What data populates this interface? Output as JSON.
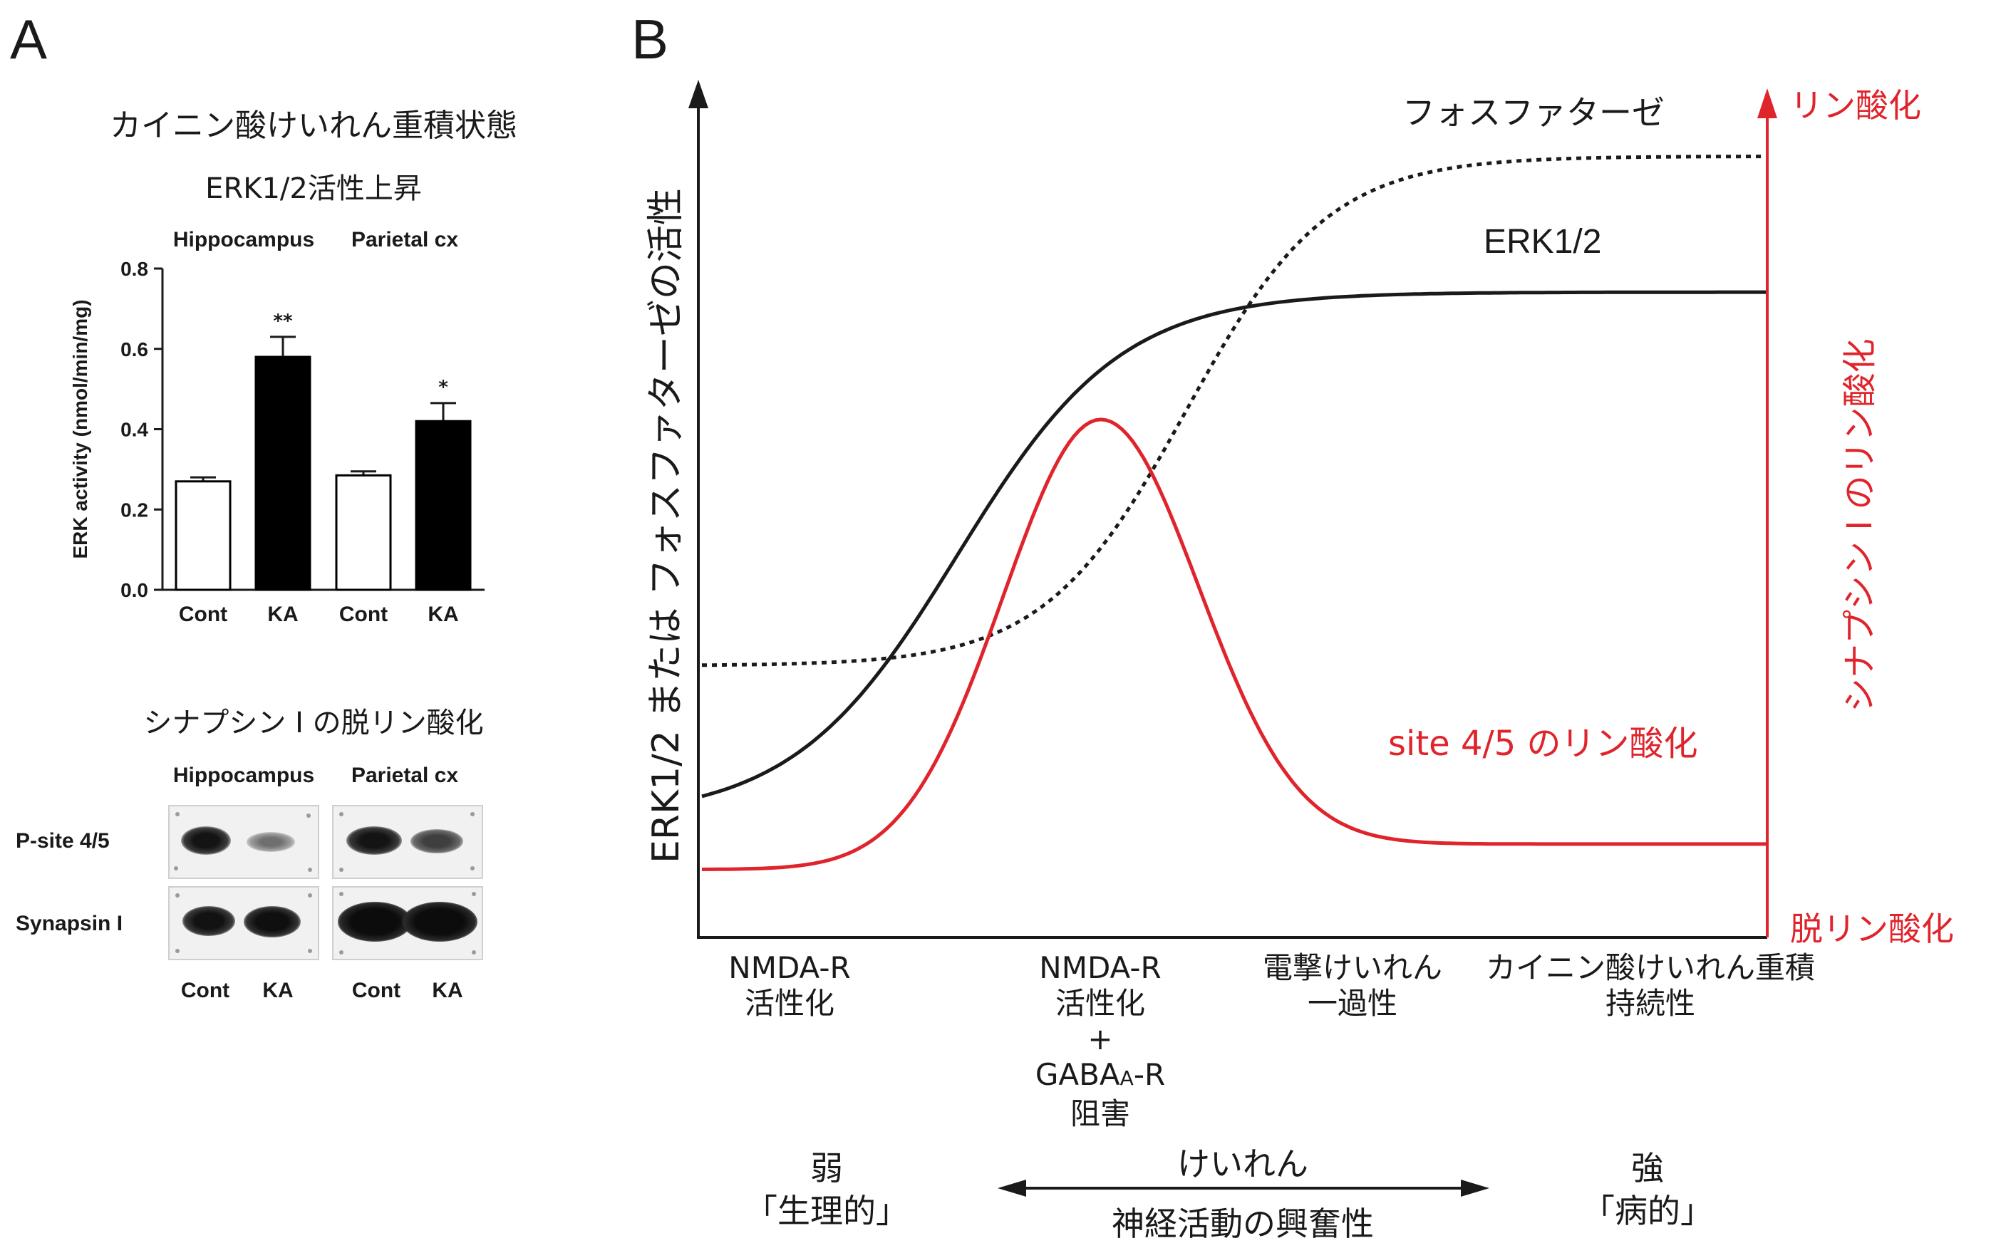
{
  "panels": {
    "a": "A",
    "b": "B"
  },
  "panel_a": {
    "title": "カイニン酸けいれん重積状態",
    "chart_title": "ERK1/2活性上昇",
    "region_left": "Hippocampus",
    "region_right": "Parietal cx",
    "blot_title": "シナプシン I の脱リン酸化",
    "blot_region_left": "Hippocampus",
    "blot_region_right": "Parietal cx",
    "blot_rows": [
      "P-site 4/5",
      "Synapsin I"
    ],
    "blot_lanes": [
      "Cont",
      "KA",
      "Cont",
      "KA"
    ]
  },
  "panel_b": {
    "y_label": "ERK1/2 または フォスファターゼの活性",
    "right_label": "シナプシン I のリン酸化",
    "right_top": "リン酸化",
    "right_bottom": "脱リン酸化",
    "curve_phosphatase": "フォスファターゼ",
    "curve_erk": "ERK1/2",
    "curve_site": "site 4/5 のリン酸化",
    "conditions": [
      [
        "NMDA-R",
        "活性化"
      ],
      [
        "NMDA-R",
        "活性化",
        "+",
        "GABA",
        "A",
        "-R",
        "阻害"
      ],
      [
        "電撃けいれん",
        "一過性"
      ],
      [
        "カイニン酸けいれん重積",
        "持続性"
      ]
    ],
    "weak": "弱",
    "weak_sub": "「生理的」",
    "strong": "強",
    "strong_sub": "「病的」",
    "arrow_top": "けいれん",
    "arrow_bottom": "神経活動の興奮性"
  },
  "colors": {
    "red": "#e0242c",
    "black": "#1a1a1a"
  },
  "chart_data": [
    {
      "type": "bar",
      "title": "ERK1/2活性上昇",
      "ylabel": "ERK activity (nmol/min/mg)",
      "xlabel": "",
      "categories": [
        "Cont",
        "KA",
        "Cont",
        "KA"
      ],
      "groups": [
        "Hippocampus",
        "Parietal cx"
      ],
      "values": [
        0.27,
        0.58,
        0.285,
        0.42
      ],
      "errors": [
        0.01,
        0.05,
        0.01,
        0.045
      ],
      "significance": [
        "",
        "**",
        "",
        "*"
      ],
      "fill": [
        "white",
        "black",
        "white",
        "black"
      ],
      "ylim": [
        0,
        0.8
      ],
      "yticks": [
        "0.0",
        "0.2",
        "0.4",
        "0.6",
        "0.8"
      ]
    },
    {
      "type": "line",
      "title": "",
      "ylabel": "ERK1/2 または フォスファターゼの活性",
      "series": [
        {
          "name": "フォスファターゼ",
          "style": "dotted",
          "color": "#1a1a1a",
          "shape": "sigmoid",
          "start_level": 0.32,
          "end_level": 0.92
        },
        {
          "name": "ERK1/2",
          "style": "solid",
          "color": "#1a1a1a",
          "shape": "sigmoid",
          "start_level": 0.14,
          "end_level": 0.76
        },
        {
          "name": "site 4/5 のリン酸化",
          "style": "solid",
          "color": "#e0242c",
          "shape": "peak",
          "start_level": 0.08,
          "peak_level": 0.61,
          "end_level": 0.11
        }
      ]
    }
  ]
}
